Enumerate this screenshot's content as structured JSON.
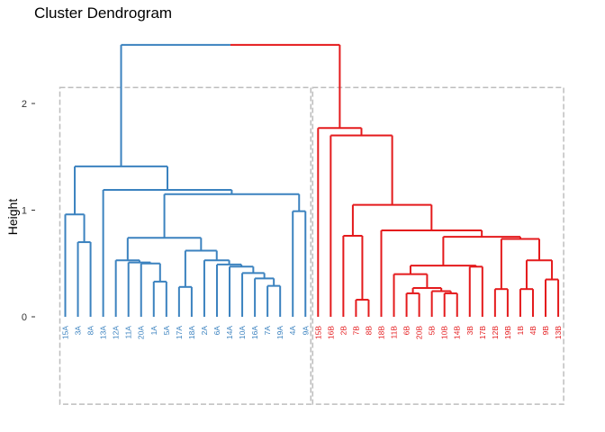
{
  "chart_data": {
    "type": "dendrogram",
    "title": "Cluster Dendrogram",
    "ylabel": "Height",
    "xlabel": "",
    "ylim": [
      -0.82,
      2.55
    ],
    "yticks": [
      0,
      1,
      2
    ],
    "grid": false,
    "colors": {
      "A": "#3B82BF",
      "B": "#E41A1C",
      "box": "#BDBDBD"
    },
    "leaves": [
      "15A",
      "3A",
      "8A",
      "13A",
      "12A",
      "11A",
      "20A",
      "1A",
      "5A",
      "17A",
      "18A",
      "2A",
      "6A",
      "14A",
      "10A",
      "16A",
      "7A",
      "19A",
      "4A",
      "9A",
      "15B",
      "16B",
      "2B",
      "7B",
      "8B",
      "18B",
      "11B",
      "6B",
      "20B",
      "5B",
      "10B",
      "14B",
      "3B",
      "17B",
      "12B",
      "19B",
      "1B",
      "4B",
      "9B",
      "13B"
    ],
    "merges": [
      {
        "left": "L:7A",
        "right": "L:19A",
        "h": 0.29,
        "id": "a1",
        "g": "A"
      },
      {
        "left": "L:16A",
        "right": "a1",
        "h": 0.36,
        "id": "a2",
        "g": "A"
      },
      {
        "left": "L:10A",
        "right": "a2",
        "h": 0.41,
        "id": "a3",
        "g": "A"
      },
      {
        "left": "L:14A",
        "right": "a3",
        "h": 0.47,
        "id": "a4",
        "g": "A"
      },
      {
        "left": "L:6A",
        "right": "a4",
        "h": 0.49,
        "id": "a5",
        "g": "A"
      },
      {
        "left": "L:2A",
        "right": "a5",
        "h": 0.53,
        "id": "a6",
        "g": "A"
      },
      {
        "left": "L:17A",
        "right": "L:18A",
        "h": 0.28,
        "id": "a7",
        "g": "A"
      },
      {
        "left": "a7",
        "right": "a6",
        "h": 0.62,
        "id": "a8",
        "g": "A"
      },
      {
        "left": "L:1A",
        "right": "L:5A",
        "h": 0.33,
        "id": "a9",
        "g": "A"
      },
      {
        "left": "L:20A",
        "right": "a9",
        "h": 0.5,
        "id": "a10",
        "g": "A"
      },
      {
        "left": "L:11A",
        "right": "a10",
        "h": 0.51,
        "id": "a11",
        "g": "A"
      },
      {
        "left": "L:12A",
        "right": "a11",
        "h": 0.53,
        "id": "a12",
        "g": "A"
      },
      {
        "left": "a12",
        "right": "a8",
        "h": 0.74,
        "id": "a13",
        "g": "A"
      },
      {
        "left": "L:4A",
        "right": "L:9A",
        "h": 0.99,
        "id": "a14",
        "g": "A"
      },
      {
        "left": "a13",
        "right": "a14",
        "h": 1.15,
        "id": "a15",
        "g": "A"
      },
      {
        "left": "L:13A",
        "right": "a15",
        "h": 1.19,
        "id": "a16",
        "g": "A"
      },
      {
        "left": "L:3A",
        "right": "L:8A",
        "h": 0.7,
        "id": "a17",
        "g": "A"
      },
      {
        "left": "L:15A",
        "right": "a17",
        "h": 0.96,
        "id": "a18",
        "g": "A"
      },
      {
        "left": "a18",
        "right": "a16",
        "h": 1.41,
        "id": "a19",
        "g": "A"
      },
      {
        "left": "L:7B",
        "right": "L:8B",
        "h": 0.16,
        "id": "b1",
        "g": "B"
      },
      {
        "left": "L:2B",
        "right": "b1",
        "h": 0.76,
        "id": "b2",
        "g": "B"
      },
      {
        "left": "L:10B",
        "right": "L:14B",
        "h": 0.22,
        "id": "b3",
        "g": "B"
      },
      {
        "left": "L:5B",
        "right": "b3",
        "h": 0.24,
        "id": "b4",
        "g": "B"
      },
      {
        "left": "L:6B",
        "right": "L:20B",
        "h": 0.22,
        "id": "b5",
        "g": "B"
      },
      {
        "left": "b5",
        "right": "b4",
        "h": 0.27,
        "id": "b6",
        "g": "B"
      },
      {
        "left": "L:11B",
        "right": "b6",
        "h": 0.4,
        "id": "b7",
        "g": "B"
      },
      {
        "left": "L:3B",
        "right": "L:17B",
        "h": 0.47,
        "id": "b8",
        "g": "B"
      },
      {
        "left": "b7",
        "right": "b8",
        "h": 0.48,
        "id": "b9",
        "g": "B"
      },
      {
        "left": "L:12B",
        "right": "L:19B",
        "h": 0.26,
        "id": "b10",
        "g": "B"
      },
      {
        "left": "L:1B",
        "right": "L:4B",
        "h": 0.26,
        "id": "b11",
        "g": "B"
      },
      {
        "left": "L:9B",
        "right": "L:13B",
        "h": 0.35,
        "id": "b12",
        "g": "B"
      },
      {
        "left": "b11",
        "right": "b12",
        "h": 0.53,
        "id": "b13",
        "g": "B"
      },
      {
        "left": "b10",
        "right": "b13",
        "h": 0.73,
        "id": "b14",
        "g": "B"
      },
      {
        "left": "b9",
        "right": "b14",
        "h": 0.75,
        "id": "b15",
        "g": "B"
      },
      {
        "left": "L:18B",
        "right": "b15",
        "h": 0.81,
        "id": "b16",
        "g": "B"
      },
      {
        "left": "b2",
        "right": "b16",
        "h": 1.05,
        "id": "b17",
        "g": "B"
      },
      {
        "left": "L:16B",
        "right": "b17",
        "h": 1.7,
        "id": "b18",
        "g": "B"
      },
      {
        "left": "L:15B",
        "right": "b18",
        "h": 1.77,
        "id": "b19",
        "g": "B"
      },
      {
        "left": "a19",
        "right": "b19",
        "h": 2.55,
        "id": "root",
        "g": "split"
      }
    ],
    "rect_groups": [
      {
        "name": "A",
        "from": "15A",
        "to": "9A",
        "ymin": -0.82,
        "ymax": 2.15
      },
      {
        "name": "B",
        "from": "15B",
        "to": "13B",
        "ymin": -0.82,
        "ymax": 2.15
      }
    ]
  }
}
